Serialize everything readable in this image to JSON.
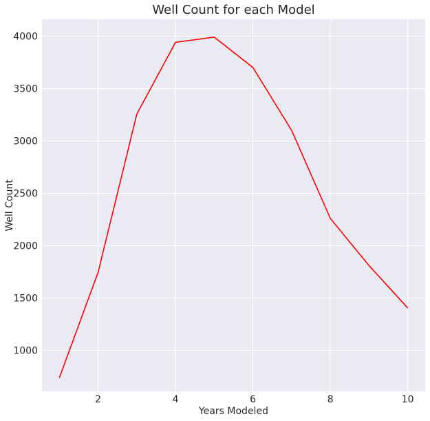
{
  "chart_data": {
    "type": "line",
    "title": "Well Count for each Model",
    "xlabel": "Years Modeled",
    "ylabel": "Well Count",
    "xlim": [
      0.55,
      10.45
    ],
    "ylim": [
      610,
      4160
    ],
    "xticks": [
      2,
      4,
      6,
      8,
      10
    ],
    "yticks": [
      1000,
      1500,
      2000,
      2500,
      3000,
      3500,
      4000
    ],
    "grid": true,
    "background": "#eaeaf2",
    "series": [
      {
        "color": "#ff0000",
        "x": [
          1,
          2,
          3,
          4,
          5,
          6,
          7,
          8,
          9,
          10
        ],
        "y": [
          740,
          1745,
          3255,
          3940,
          3990,
          3700,
          3100,
          2260,
          1810,
          1405
        ]
      }
    ]
  }
}
